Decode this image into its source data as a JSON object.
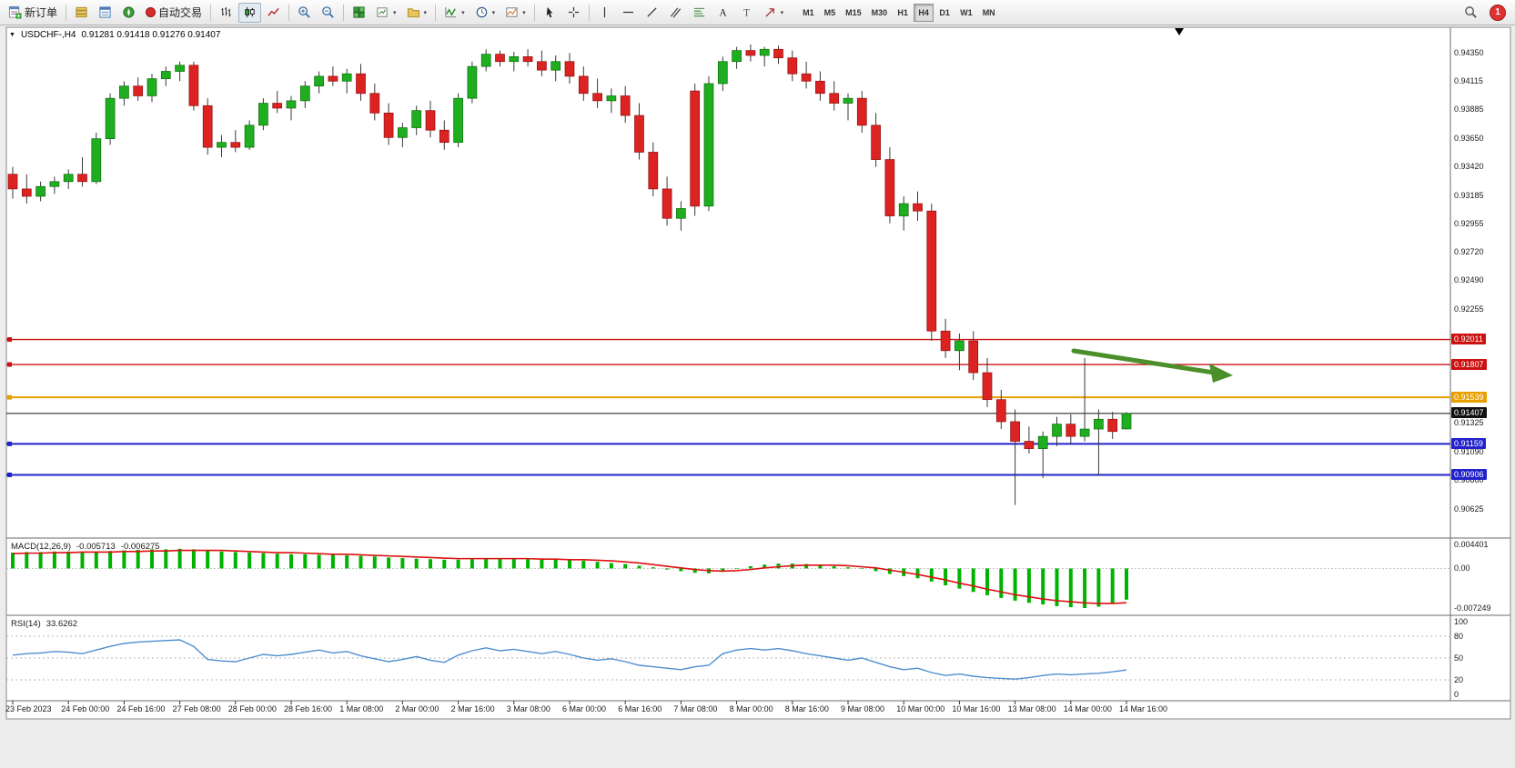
{
  "toolbar": {
    "new_order_label": "新订单",
    "auto_trading_label": "自动交易",
    "timeframes": [
      "M1",
      "M5",
      "M15",
      "M30",
      "H1",
      "H4",
      "D1",
      "W1",
      "MN"
    ],
    "active_timeframe": "H4",
    "notification_count": "1"
  },
  "chart": {
    "title": "USDCHF-,H4",
    "ohlc_text": "0.91281 0.91418 0.91276 0.91407",
    "current_price": "0.91407",
    "price_axis_labels": [
      "0.94350",
      "0.94115",
      "0.93885",
      "0.93650",
      "0.93420",
      "0.93185",
      "0.92955",
      "0.92720",
      "0.92490",
      "0.92255",
      "0.91325",
      "0.91090",
      "0.90860",
      "0.90625"
    ],
    "line_labels": [
      {
        "text": "0.92011",
        "color": "#cc1111"
      },
      {
        "text": "0.91807",
        "color": "#cc1111"
      },
      {
        "text": "0.91539",
        "color": "#e8a000"
      },
      {
        "text": "0.91407",
        "color": "#111111"
      },
      {
        "text": "0.91159",
        "color": "#2222cc"
      },
      {
        "text": "0.90906",
        "color": "#2222cc"
      }
    ],
    "hlines": [
      {
        "price": 0.92011,
        "color": "#cc1111",
        "w": 1.4
      },
      {
        "price": 0.91807,
        "color": "#cc1111",
        "w": 1.4
      },
      {
        "price": 0.91539,
        "color": "#e8a000",
        "w": 2
      },
      {
        "price": 0.91159,
        "color": "#2222cc",
        "w": 2
      },
      {
        "price": 0.90906,
        "color": "#2222cc",
        "w": 2
      }
    ],
    "colors": {
      "up": "#1fae1f",
      "up_edge": "#0b6b0b",
      "down": "#dd2222",
      "down_edge": "#8f0f0f",
      "wick": "#3a3a3a",
      "arrow": "#4a8f29"
    }
  },
  "macd": {
    "name": "MACD(12,26,9)",
    "value_main": "-0.005713",
    "value_signal": "-0.006275",
    "axis": [
      {
        "text": "0.004401",
        "value": 0.004401
      },
      {
        "text": "0.00",
        "value": 0
      },
      {
        "text": "-0.007249",
        "value": -0.007249
      }
    ],
    "histogram_color": "#00b300",
    "signal_color": "#dd1111"
  },
  "rsi": {
    "name": "RSI(14)",
    "value": "33.6262",
    "axis": [
      {
        "text": "100",
        "value": 100
      },
      {
        "text": "80",
        "value": 80
      },
      {
        "text": "50",
        "value": 50
      },
      {
        "text": "20",
        "value": 20
      },
      {
        "text": "0",
        "value": 0
      }
    ],
    "levels": [
      80,
      50,
      20
    ],
    "line_color": "#4f8fd0"
  },
  "chart_data": [
    {
      "type": "candlestick",
      "title": "USDCHF H4",
      "symbol": "USDCHF",
      "timeframe": "H4",
      "ylim": [
        0.9039,
        0.9456
      ],
      "last_ohlc": {
        "open": 0.91281,
        "high": 0.91418,
        "low": 0.91276,
        "close": 0.91407
      },
      "x_labels": [
        "23 Feb 2023",
        "24 Feb 00:00",
        "24 Feb 16:00",
        "27 Feb 08:00",
        "28 Feb 00:00",
        "28 Feb 16:00",
        "1 Mar 08:00",
        "2 Mar 00:00",
        "2 Mar 16:00",
        "3 Mar 08:00",
        "6 Mar 00:00",
        "6 Mar 16:00",
        "7 Mar 08:00",
        "8 Mar 00:00",
        "8 Mar 16:00",
        "9 Mar 08:00",
        "10 Mar 00:00",
        "10 Mar 16:00",
        "13 Mar 08:00",
        "14 Mar 00:00",
        "14 Mar 16:00"
      ],
      "bars_per_label": 4,
      "ohlc": [
        [
          0.9336,
          0.9342,
          0.9316,
          0.9324
        ],
        [
          0.9324,
          0.9336,
          0.9312,
          0.9318
        ],
        [
          0.9318,
          0.933,
          0.9314,
          0.9326
        ],
        [
          0.9326,
          0.9334,
          0.932,
          0.933
        ],
        [
          0.933,
          0.934,
          0.9324,
          0.9336
        ],
        [
          0.9336,
          0.935,
          0.9326,
          0.933
        ],
        [
          0.933,
          0.937,
          0.9328,
          0.9365
        ],
        [
          0.9365,
          0.9402,
          0.936,
          0.9398
        ],
        [
          0.9398,
          0.9412,
          0.9392,
          0.9408
        ],
        [
          0.9408,
          0.9415,
          0.9396,
          0.94
        ],
        [
          0.94,
          0.9418,
          0.9395,
          0.9414
        ],
        [
          0.9414,
          0.9424,
          0.9408,
          0.942
        ],
        [
          0.942,
          0.9428,
          0.9412,
          0.9425
        ],
        [
          0.9425,
          0.9428,
          0.9388,
          0.9392
        ],
        [
          0.9392,
          0.9398,
          0.9352,
          0.9358
        ],
        [
          0.9358,
          0.9368,
          0.935,
          0.9362
        ],
        [
          0.9362,
          0.9372,
          0.9354,
          0.9358
        ],
        [
          0.9358,
          0.938,
          0.9356,
          0.9376
        ],
        [
          0.9376,
          0.9398,
          0.9372,
          0.9394
        ],
        [
          0.9394,
          0.9404,
          0.9386,
          0.939
        ],
        [
          0.939,
          0.94,
          0.938,
          0.9396
        ],
        [
          0.9396,
          0.9412,
          0.939,
          0.9408
        ],
        [
          0.9408,
          0.942,
          0.9402,
          0.9416
        ],
        [
          0.9416,
          0.9424,
          0.9408,
          0.9412
        ],
        [
          0.9412,
          0.9422,
          0.9402,
          0.9418
        ],
        [
          0.9418,
          0.9426,
          0.9396,
          0.9402
        ],
        [
          0.9402,
          0.941,
          0.938,
          0.9386
        ],
        [
          0.9386,
          0.9394,
          0.936,
          0.9366
        ],
        [
          0.9366,
          0.9378,
          0.9358,
          0.9374
        ],
        [
          0.9374,
          0.9392,
          0.9368,
          0.9388
        ],
        [
          0.9388,
          0.9396,
          0.9366,
          0.9372
        ],
        [
          0.9372,
          0.938,
          0.9356,
          0.9362
        ],
        [
          0.9362,
          0.9402,
          0.9358,
          0.9398
        ],
        [
          0.9398,
          0.9428,
          0.9394,
          0.9424
        ],
        [
          0.9424,
          0.9438,
          0.942,
          0.9434
        ],
        [
          0.9434,
          0.9437,
          0.9424,
          0.9428
        ],
        [
          0.9428,
          0.9436,
          0.942,
          0.9432
        ],
        [
          0.9432,
          0.9438,
          0.9424,
          0.9428
        ],
        [
          0.9428,
          0.9437,
          0.9416,
          0.9421
        ],
        [
          0.9421,
          0.9433,
          0.9412,
          0.9428
        ],
        [
          0.9428,
          0.9435,
          0.941,
          0.9416
        ],
        [
          0.9416,
          0.9424,
          0.9396,
          0.9402
        ],
        [
          0.9402,
          0.9414,
          0.939,
          0.9396
        ],
        [
          0.9396,
          0.9406,
          0.9386,
          0.94
        ],
        [
          0.94,
          0.9408,
          0.9378,
          0.9384
        ],
        [
          0.9384,
          0.9394,
          0.9348,
          0.9354
        ],
        [
          0.9354,
          0.9362,
          0.9318,
          0.9324
        ],
        [
          0.9324,
          0.9334,
          0.9294,
          0.93
        ],
        [
          0.93,
          0.9314,
          0.929,
          0.9308
        ],
        [
          0.9404,
          0.941,
          0.9302,
          0.931
        ],
        [
          0.931,
          0.9416,
          0.9306,
          0.941
        ],
        [
          0.941,
          0.9432,
          0.9404,
          0.9428
        ],
        [
          0.9428,
          0.944,
          0.9422,
          0.9437
        ],
        [
          0.9437,
          0.9442,
          0.9428,
          0.9433
        ],
        [
          0.9433,
          0.944,
          0.9424,
          0.9438
        ],
        [
          0.9438,
          0.9441,
          0.9426,
          0.9431
        ],
        [
          0.9431,
          0.9437,
          0.9412,
          0.9418
        ],
        [
          0.9418,
          0.9428,
          0.9406,
          0.9412
        ],
        [
          0.9412,
          0.942,
          0.9396,
          0.9402
        ],
        [
          0.9402,
          0.9412,
          0.9388,
          0.9394
        ],
        [
          0.9394,
          0.9402,
          0.938,
          0.9398
        ],
        [
          0.9398,
          0.9404,
          0.937,
          0.9376
        ],
        [
          0.9376,
          0.9386,
          0.9342,
          0.9348
        ],
        [
          0.9348,
          0.9358,
          0.9296,
          0.9302
        ],
        [
          0.9302,
          0.9318,
          0.929,
          0.9312
        ],
        [
          0.9312,
          0.9322,
          0.9298,
          0.9306
        ],
        [
          0.9306,
          0.9312,
          0.92,
          0.9208
        ],
        [
          0.9208,
          0.9218,
          0.9186,
          0.9192
        ],
        [
          0.9192,
          0.9206,
          0.9176,
          0.92
        ],
        [
          0.92,
          0.9208,
          0.9168,
          0.9174
        ],
        [
          0.9174,
          0.9186,
          0.9146,
          0.9152
        ],
        [
          0.9152,
          0.916,
          0.9128,
          0.9134
        ],
        [
          0.9134,
          0.9144,
          0.9066,
          0.9118
        ],
        [
          0.9118,
          0.913,
          0.9108,
          0.9112
        ],
        [
          0.9112,
          0.9126,
          0.9088,
          0.9122
        ],
        [
          0.9122,
          0.9138,
          0.9114,
          0.9132
        ],
        [
          0.9132,
          0.914,
          0.9116,
          0.9122
        ],
        [
          0.9122,
          0.9186,
          0.9118,
          0.9128
        ],
        [
          0.9128,
          0.9144,
          0.909,
          0.9136
        ],
        [
          0.9136,
          0.9142,
          0.912,
          0.9126
        ],
        [
          0.91281,
          0.91418,
          0.91276,
          0.91407
        ]
      ]
    },
    {
      "type": "bar",
      "title": "MACD(12,26,9)",
      "ylim": [
        -0.007249,
        0.004401
      ],
      "last_values": {
        "macd": -0.005713,
        "signal": -0.006275
      },
      "values": [
        0.0029,
        0.003,
        0.003,
        0.0031,
        0.0031,
        0.003,
        0.0031,
        0.0032,
        0.0033,
        0.0034,
        0.0035,
        0.0035,
        0.0036,
        0.0035,
        0.0033,
        0.0031,
        0.003,
        0.0029,
        0.0028,
        0.0027,
        0.0026,
        0.0026,
        0.0025,
        0.0025,
        0.0024,
        0.0023,
        0.0022,
        0.002,
        0.0019,
        0.0018,
        0.0017,
        0.0016,
        0.0016,
        0.0017,
        0.0018,
        0.0018,
        0.0018,
        0.0017,
        0.0016,
        0.0016,
        0.0015,
        0.0014,
        0.0012,
        0.001,
        0.0008,
        0.0005,
        0.0002,
        -0.0002,
        -0.0005,
        -0.0008,
        -0.0009,
        -0.0006,
        -0.0001,
        0.0004,
        0.0007,
        0.0009,
        0.0009,
        0.0008,
        0.0006,
        0.0004,
        0.0002,
        -0.0001,
        -0.0005,
        -0.001,
        -0.0014,
        -0.0018,
        -0.0024,
        -0.0031,
        -0.0037,
        -0.0043,
        -0.0049,
        -0.0054,
        -0.0059,
        -0.0063,
        -0.0066,
        -0.0069,
        -0.0071,
        -0.00725,
        -0.007,
        -0.0064,
        -0.005713
      ],
      "signal": [
        0.0027,
        0.0028,
        0.0028,
        0.0029,
        0.0029,
        0.003,
        0.003,
        0.003,
        0.0031,
        0.0031,
        0.0032,
        0.0032,
        0.0033,
        0.0033,
        0.0033,
        0.0033,
        0.0032,
        0.0031,
        0.003,
        0.0029,
        0.0029,
        0.0028,
        0.0027,
        0.0026,
        0.0026,
        0.0025,
        0.0024,
        0.0023,
        0.0022,
        0.0021,
        0.002,
        0.0019,
        0.0018,
        0.0018,
        0.0018,
        0.0018,
        0.0018,
        0.0018,
        0.0017,
        0.0017,
        0.0016,
        0.0016,
        0.0015,
        0.0014,
        0.0012,
        0.001,
        0.0007,
        0.0004,
        0.0001,
        -0.0002,
        -0.0004,
        -0.0005,
        -0.0004,
        -0.0002,
        0.0001,
        0.0003,
        0.0005,
        0.0006,
        0.0006,
        0.0006,
        0.0005,
        0.0003,
        0.0001,
        -0.0003,
        -0.0007,
        -0.0011,
        -0.0016,
        -0.0021,
        -0.0027,
        -0.0032,
        -0.0038,
        -0.0043,
        -0.0048,
        -0.0052,
        -0.0056,
        -0.0059,
        -0.0061,
        -0.0063,
        -0.0064,
        -0.0064,
        -0.006275
      ]
    },
    {
      "type": "line",
      "title": "RSI(14)",
      "ylim": [
        0,
        100
      ],
      "levels": [
        80,
        50,
        20
      ],
      "last_value": 33.6262,
      "values": [
        54,
        56,
        57,
        59,
        58,
        56,
        61,
        66,
        70,
        72,
        73,
        74,
        75,
        66,
        48,
        46,
        45,
        50,
        55,
        53,
        55,
        58,
        61,
        57,
        59,
        53,
        49,
        45,
        48,
        52,
        47,
        44,
        54,
        60,
        64,
        60,
        62,
        59,
        56,
        59,
        55,
        50,
        47,
        49,
        45,
        40,
        38,
        36,
        34,
        38,
        40,
        56,
        61,
        63,
        61,
        63,
        60,
        56,
        53,
        50,
        47,
        50,
        44,
        38,
        34,
        36,
        30,
        26,
        28,
        25,
        23,
        22,
        21,
        23,
        26,
        28,
        27,
        28,
        29,
        31,
        33.63
      ]
    }
  ]
}
